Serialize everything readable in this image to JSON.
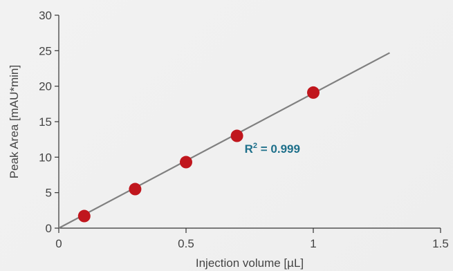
{
  "chart_data": {
    "type": "scatter",
    "title": "",
    "xlabel": "Injection volume [µL]",
    "ylabel": "Peak Area [mAU*min]",
    "xlim": [
      0,
      1.5
    ],
    "ylim": [
      0,
      30
    ],
    "x_ticks": [
      "0",
      "0.5",
      "1",
      "1.5"
    ],
    "y_ticks": [
      "0",
      "5",
      "10",
      "15",
      "20",
      "25",
      "30"
    ],
    "points": [
      {
        "x": 0.1,
        "y": 1.7
      },
      {
        "x": 0.3,
        "y": 5.5
      },
      {
        "x": 0.5,
        "y": 9.3
      },
      {
        "x": 0.7,
        "y": 13.0
      },
      {
        "x": 1.0,
        "y": 19.1
      }
    ],
    "trendline": {
      "x0": 0,
      "y0": 0,
      "x1": 1.3,
      "y1": 24.7
    },
    "annotation": {
      "label": "R",
      "sup": "2",
      "value": " = 0.999",
      "x": 0.73,
      "y": 11.2
    },
    "colors": {
      "points": "#c0161d",
      "trendline": "#808080",
      "annotation": "#1d6f8a"
    },
    "grid": false,
    "legend": "none"
  }
}
